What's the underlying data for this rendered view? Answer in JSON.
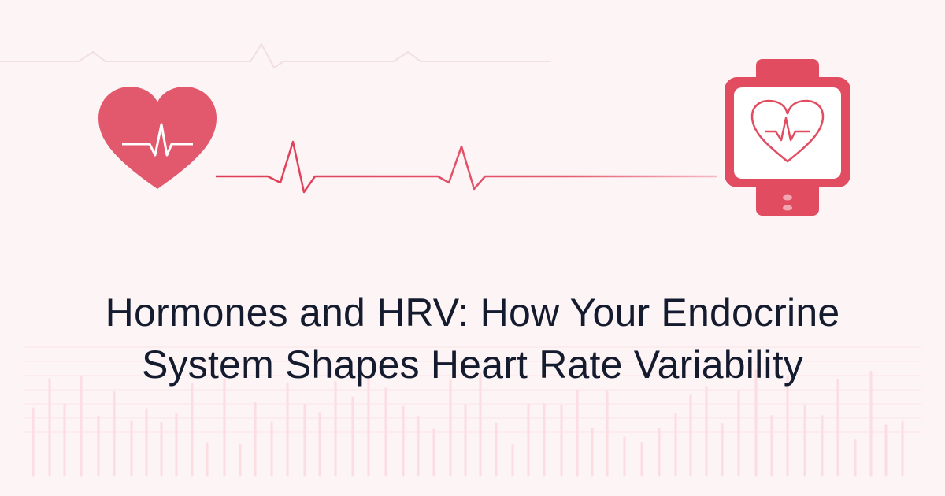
{
  "title": {
    "line1": "Hormones and HRV: How Your Endocrine",
    "line2": "System Shapes Heart Rate Variability"
  },
  "icons": [
    "heart-ecg-icon",
    "smartwatch-heart-icon"
  ],
  "colors": {
    "accent": "#e24c61",
    "heart": "#e2596d",
    "text": "#151b2e",
    "background": "#fdf4f5",
    "bars": "#fcdde2"
  }
}
